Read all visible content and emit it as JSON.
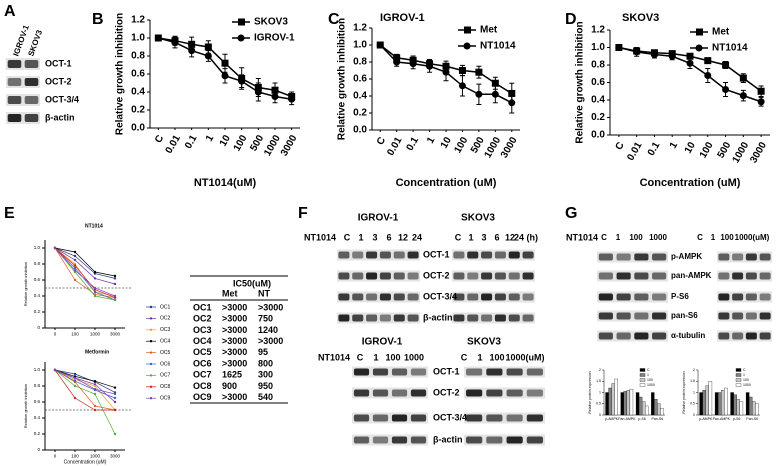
{
  "panel_labels": [
    "A",
    "B",
    "C",
    "D",
    "E",
    "F",
    "G"
  ],
  "panel_a": {
    "lanes": [
      "IGROV-1",
      "SKOV3"
    ],
    "bands": [
      "OCT-1",
      "OCT-2",
      "OCT-3/4",
      "β-actin"
    ]
  },
  "chart_data": [
    {
      "type": "line",
      "xlabel": "NT1014(uM)",
      "ylabel": "Relative growth inhibition",
      "categories": [
        "C",
        "0.01",
        "0.1",
        "1",
        "10",
        "100",
        "500",
        "1000",
        "3000"
      ],
      "ylim": [
        0,
        1.2
      ],
      "yticks": [
        {
          "value": 0,
          "label": "0.0"
        },
        0.2,
        0.4,
        0.6,
        0.8,
        {
          "value": 1,
          "label": "1.0"
        },
        1.2
      ],
      "series": [
        {
          "name": "SKOV3",
          "color": "#000000",
          "marker": "square",
          "values": [
            1.0,
            0.97,
            0.93,
            0.9,
            0.72,
            0.55,
            0.45,
            0.42,
            0.35
          ],
          "errors": [
            0,
            0.05,
            0.08,
            0.07,
            0.1,
            0.12,
            0.1,
            0.08,
            0.05
          ]
        },
        {
          "name": "IGROV-1",
          "color": "#000000",
          "marker": "circle",
          "values": [
            1.0,
            0.95,
            0.86,
            0.8,
            0.58,
            0.52,
            0.4,
            0.35,
            0.32
          ],
          "errors": [
            0,
            0.06,
            0.07,
            0.06,
            0.08,
            0.07,
            0.1,
            0.07,
            0.06
          ]
        }
      ]
    },
    {
      "type": "line",
      "title": "IGROV-1",
      "xlabel": "Concentration (uM)",
      "ylabel": "Relative growth inhibition",
      "categories": [
        "C",
        "0.01",
        "0.1",
        "1",
        "10",
        "100",
        "500",
        "1000",
        "3000"
      ],
      "ylim": [
        0,
        1.2
      ],
      "yticks": [
        {
          "value": 0,
          "label": "0.0"
        },
        0.2,
        0.4,
        0.6,
        0.8,
        {
          "value": 1,
          "label": "1.0"
        },
        1.2
      ],
      "series": [
        {
          "name": "Met",
          "color": "#000000",
          "marker": "square",
          "values": [
            1.0,
            0.85,
            0.82,
            0.78,
            0.75,
            0.7,
            0.68,
            0.55,
            0.43
          ],
          "errors": [
            0,
            0.04,
            0.05,
            0.05,
            0.06,
            0.06,
            0.07,
            0.07,
            0.12
          ]
        },
        {
          "name": "NT1014",
          "color": "#000000",
          "marker": "circle",
          "values": [
            1.0,
            0.8,
            0.78,
            0.75,
            0.68,
            0.52,
            0.42,
            0.42,
            0.32
          ],
          "errors": [
            0,
            0.05,
            0.06,
            0.07,
            0.1,
            0.12,
            0.12,
            0.1,
            0.12
          ]
        }
      ]
    },
    {
      "type": "line",
      "title": "SKOV3",
      "xlabel": "Concentration (uM)",
      "ylabel": "Relative growth inhibition",
      "categories": [
        "C",
        "0.01",
        "0.1",
        "1",
        "10",
        "100",
        "500",
        "1000",
        "3000"
      ],
      "ylim": [
        0,
        1.2
      ],
      "yticks": [
        {
          "value": 0,
          "label": "0.0"
        },
        0.2,
        0.4,
        0.6,
        0.8,
        {
          "value": 1,
          "label": "1.0"
        },
        1.2
      ],
      "series": [
        {
          "name": "Met",
          "color": "#000000",
          "marker": "square",
          "values": [
            1.0,
            0.96,
            0.94,
            0.93,
            0.9,
            0.85,
            0.8,
            0.65,
            0.5
          ],
          "errors": [
            0,
            0.02,
            0.02,
            0.02,
            0.03,
            0.03,
            0.04,
            0.05,
            0.06
          ]
        },
        {
          "name": "NT1014",
          "color": "#000000",
          "marker": "circle",
          "values": [
            1.0,
            0.95,
            0.92,
            0.9,
            0.82,
            0.68,
            0.52,
            0.45,
            0.38
          ],
          "errors": [
            0,
            0.05,
            0.04,
            0.04,
            0.06,
            0.08,
            0.08,
            0.06,
            0.05
          ]
        }
      ]
    },
    {
      "type": "line",
      "title": "NT1014",
      "ylabel": "Relative growth inhibition",
      "categories": [
        "0",
        "100",
        "1000",
        "3000"
      ],
      "ylim": [
        0,
        1.1
      ],
      "yticks": [
        0,
        0.2,
        0.4,
        0.6,
        0.8,
        {
          "value": 1,
          "label": "1.0"
        }
      ],
      "reference_line": 0.5,
      "series": [
        {
          "name": "OC1",
          "color": "#1f3b8c",
          "marker": "dot",
          "values": [
            1.0,
            0.9,
            0.68,
            0.62
          ]
        },
        {
          "name": "OC2",
          "color": "#7030a0",
          "marker": "dot",
          "values": [
            1.0,
            0.85,
            0.62,
            0.55
          ]
        },
        {
          "name": "OC3",
          "color": "#f0a030",
          "marker": "dot",
          "values": [
            1.0,
            0.8,
            0.45,
            0.4
          ]
        },
        {
          "name": "OC4",
          "color": "#000000",
          "marker": "dot",
          "values": [
            1.0,
            0.95,
            0.7,
            0.65
          ]
        },
        {
          "name": "OC5",
          "color": "#e06020",
          "marker": "dot",
          "values": [
            1.0,
            0.6,
            0.42,
            0.38
          ]
        },
        {
          "name": "OC6",
          "color": "#4060d0",
          "marker": "dot",
          "values": [
            1.0,
            0.75,
            0.45,
            0.35
          ]
        },
        {
          "name": "OC7",
          "color": "#50b030",
          "marker": "dot",
          "values": [
            1.0,
            0.7,
            0.4,
            0.35
          ]
        },
        {
          "name": "OC8",
          "color": "#d02020",
          "marker": "dot",
          "values": [
            1.0,
            0.78,
            0.48,
            0.38
          ]
        },
        {
          "name": "OC9",
          "color": "#8040c0",
          "marker": "dot",
          "values": [
            1.0,
            0.72,
            0.5,
            0.4
          ]
        }
      ]
    },
    {
      "type": "line",
      "title": "Metformin",
      "xlabel": "Concentration (uM)",
      "ylabel": "Relative growth inhibition",
      "categories": [
        "0",
        "100",
        "1000",
        "3000"
      ],
      "ylim": [
        0,
        1.1
      ],
      "yticks": [
        0,
        0.2,
        0.4,
        0.6,
        0.8,
        {
          "value": 1,
          "label": "1.0"
        }
      ],
      "reference_line": 0.5,
      "series": [
        {
          "color": "#1f3b8c",
          "marker": "dot",
          "values": [
            1.0,
            0.95,
            0.85,
            0.72
          ]
        },
        {
          "color": "#7030a0",
          "marker": "dot",
          "values": [
            1.0,
            0.9,
            0.82,
            0.6
          ]
        },
        {
          "color": "#f0a030",
          "marker": "dot",
          "values": [
            1.0,
            0.88,
            0.8,
            0.5
          ]
        },
        {
          "color": "#000000",
          "marker": "dot",
          "values": [
            1.0,
            0.92,
            0.86,
            0.78
          ]
        },
        {
          "color": "#e06020",
          "marker": "dot",
          "values": [
            1.0,
            0.85,
            0.55,
            0.5
          ]
        },
        {
          "color": "#4060d0",
          "marker": "dot",
          "values": [
            1.0,
            0.86,
            0.75,
            0.65
          ]
        },
        {
          "color": "#50b030",
          "marker": "dot",
          "values": [
            1.0,
            0.8,
            0.7,
            0.2
          ]
        },
        {
          "color": "#d02020",
          "marker": "dot",
          "values": [
            1.0,
            0.65,
            0.5,
            0.5
          ]
        },
        {
          "color": "#8040c0",
          "marker": "dot",
          "values": [
            1.0,
            0.9,
            0.76,
            0.7
          ]
        }
      ]
    },
    {
      "type": "bar",
      "ylabel": "Relative protein expression",
      "categories": [
        "p-AMPK",
        "Pan-AMPK",
        "p-S6",
        "Pan-S6"
      ],
      "ylim": [
        0,
        2
      ],
      "yticks": [
        0,
        0.5,
        1,
        1.5,
        2
      ],
      "series": [
        {
          "name": "C",
          "color": "#000000",
          "values": [
            1,
            1,
            1,
            1
          ]
        },
        {
          "name": "1",
          "color": "#808080",
          "values": [
            1.2,
            1.05,
            0.8,
            0.7
          ]
        },
        {
          "name": "100",
          "color": "#c8c8c8",
          "values": [
            1.4,
            1.1,
            0.6,
            0.5
          ]
        },
        {
          "name": "1000",
          "color": "#ffffff",
          "values": [
            1.6,
            1.15,
            0.4,
            0.3
          ]
        }
      ]
    },
    {
      "type": "bar",
      "ylabel": "Relative protein expression",
      "categories": [
        "p-AMPK",
        "Pan-AMPK",
        "p-S6",
        "Pan-S6"
      ],
      "ylim": [
        0,
        2
      ],
      "yticks": [
        0,
        0.5,
        1,
        1.5,
        2
      ],
      "series": [
        {
          "name": "C",
          "color": "#000000",
          "values": [
            1,
            1,
            1,
            1
          ]
        },
        {
          "name": "1",
          "color": "#808080",
          "values": [
            1.1,
            1.0,
            0.9,
            0.8
          ]
        },
        {
          "name": "100",
          "color": "#c8c8c8",
          "values": [
            1.3,
            1.1,
            0.7,
            0.6
          ]
        },
        {
          "name": "1000",
          "color": "#ffffff",
          "values": [
            1.5,
            1.2,
            0.6,
            0.5
          ]
        }
      ]
    }
  ],
  "table": {
    "title": "IC50(uM)",
    "columns": [
      "Met",
      "NT"
    ],
    "rows": [
      [
        "OC1",
        ">3000",
        ">3000"
      ],
      [
        "OC2",
        ">3000",
        "750"
      ],
      [
        "OC3",
        ">3000",
        "1240"
      ],
      [
        "OC4",
        ">3000",
        ">3000"
      ],
      [
        "OC5",
        ">3000",
        "95"
      ],
      [
        "OC6",
        ">3000",
        "800"
      ],
      [
        "OC7",
        "1625",
        "300"
      ],
      [
        "OC8",
        "900",
        "950"
      ],
      [
        "OC9",
        ">3000",
        "540"
      ]
    ]
  },
  "panel_f": {
    "top": {
      "treatment": "NT1014",
      "groups": [
        {
          "cell_line": "IGROV-1",
          "lanes": [
            "C",
            "1",
            "3",
            "6",
            "12",
            "24"
          ]
        },
        {
          "cell_line": "SKOV3",
          "lanes": [
            "C",
            "1",
            "3",
            "6",
            "12",
            "24 (h)"
          ]
        }
      ],
      "bands": [
        "OCT-1",
        "OCT-2",
        "OCT-3/4",
        "β-actin"
      ]
    },
    "bottom": {
      "treatment": "NT1014",
      "groups": [
        {
          "cell_line": "IGROV-1",
          "lanes": [
            "C",
            "1",
            "100",
            "1000"
          ]
        },
        {
          "cell_line": "SKOV3",
          "lanes": [
            "C",
            "1",
            "100",
            "1000(uM)"
          ]
        }
      ],
      "bands": [
        "OCT-1",
        "OCT-2",
        "OCT-3/4",
        "β-actin"
      ]
    }
  },
  "panel_g": {
    "treatment": "NT1014",
    "groups": [
      {
        "lanes": [
          "C",
          "1",
          "100",
          "1000"
        ]
      },
      {
        "lanes": [
          "C",
          "1",
          "100",
          "1000(uM)"
        ]
      }
    ],
    "bands": [
      "p-AMPK",
      "pan-AMPK",
      "P-S6",
      "pan-S6",
      "α-tubulin"
    ]
  }
}
